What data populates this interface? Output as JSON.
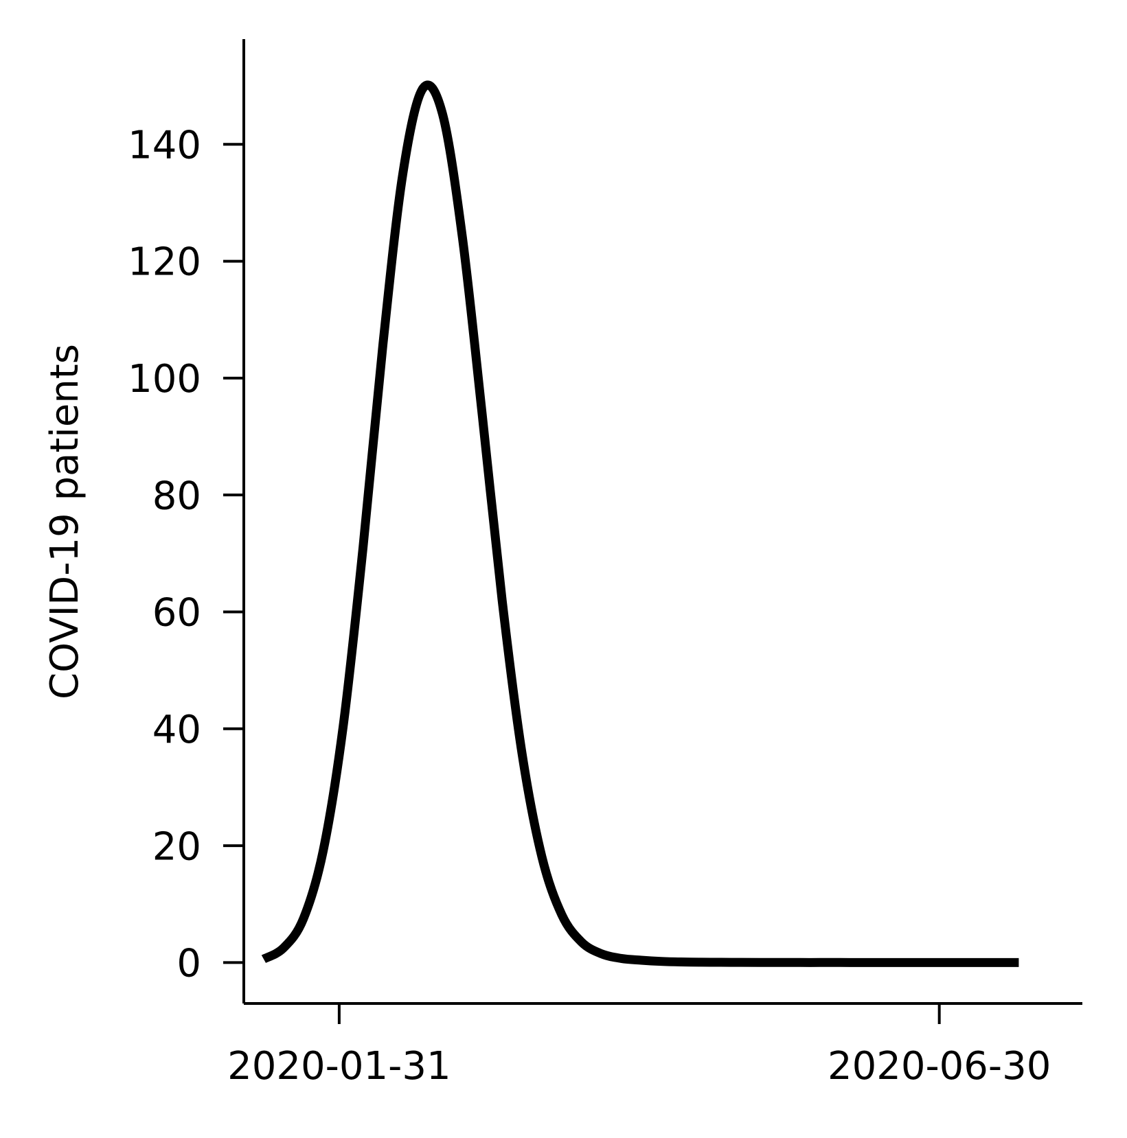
{
  "chart_data": {
    "type": "line",
    "title": "",
    "xlabel": "",
    "ylabel": "COVID-19 patients",
    "x_tick_labels": [
      "2020-01-31",
      "2020-06-30"
    ],
    "y_tick_labels": [
      "0",
      "20",
      "40",
      "60",
      "80",
      "100",
      "120",
      "140"
    ],
    "xlim": [
      "2020-01-07",
      "2020-08-05"
    ],
    "ylim": [
      -7,
      158
    ],
    "grid": false,
    "series": [
      {
        "color": "#000000",
        "x": [
          "2020-01-12",
          "2020-01-17",
          "2020-01-22",
          "2020-01-27",
          "2020-02-01",
          "2020-02-06",
          "2020-02-11",
          "2020-02-16",
          "2020-02-21",
          "2020-02-26",
          "2020-03-02",
          "2020-03-07",
          "2020-03-12",
          "2020-03-17",
          "2020-03-22",
          "2020-03-27",
          "2020-04-01",
          "2020-04-06",
          "2020-04-11",
          "2020-04-16",
          "2020-04-21",
          "2020-04-26",
          "2020-05-01",
          "2020-05-06",
          "2020-05-11",
          "2020-05-16",
          "2020-05-21",
          "2020-05-26",
          "2020-05-31",
          "2020-06-05",
          "2020-06-10",
          "2020-06-15",
          "2020-06-20",
          "2020-06-25",
          "2020-06-30",
          "2020-07-05",
          "2020-07-10",
          "2020-07-15",
          "2020-07-20"
        ],
        "y": [
          0.6,
          2.5,
          7.5,
          19.2,
          40.4,
          71.0,
          105.7,
          134.9,
          149.5,
          145.2,
          124.1,
          93.7,
          62.0,
          35.8,
          18.1,
          8.2,
          3.5,
          1.5,
          0.7,
          0.4,
          0.2,
          0.1,
          0.06,
          0.04,
          0.03,
          0.02,
          0.02,
          0.01,
          0.01,
          0.01,
          0.0,
          0.0,
          0.0,
          0.0,
          0.0,
          0.0,
          0.0,
          0.0,
          0.0
        ]
      }
    ]
  }
}
